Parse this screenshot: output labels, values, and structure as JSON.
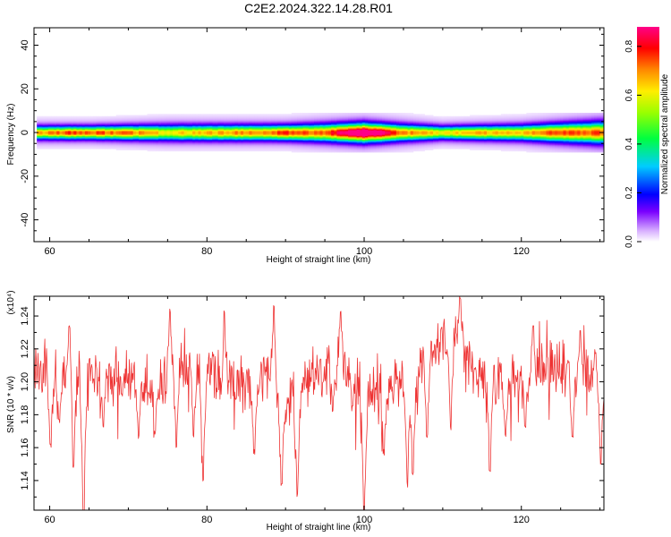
{
  "title": "C2E2.2024.322.14.28.R01",
  "chart_data": [
    {
      "type": "heatmap",
      "xlabel": "Height of straight line (km)",
      "ylabel": "Frequency (Hz)",
      "xlim": [
        58,
        130.5
      ],
      "ylim": [
        -50,
        48
      ],
      "xticks": [
        60,
        80,
        100,
        120
      ],
      "xtick_labels": [
        "60",
        "80",
        "100",
        "120"
      ],
      "yticks": [
        -40,
        -20,
        0,
        20,
        40
      ],
      "ytick_labels": [
        "-40",
        "-20",
        "0",
        "20",
        "40"
      ],
      "band": {
        "center_hz": 0,
        "halfwidth_hz": [
          [
            58.3,
            3
          ],
          [
            65,
            3
          ],
          [
            75,
            3.5
          ],
          [
            85,
            3.5
          ],
          [
            90,
            3.5
          ],
          [
            100,
            4.5
          ],
          [
            110,
            3
          ],
          [
            120,
            3.5
          ],
          [
            130.5,
            5
          ]
        ],
        "peak_amplitude": [
          [
            58.3,
            0.55
          ],
          [
            63,
            0.65
          ],
          [
            70,
            0.6
          ],
          [
            75,
            0.5
          ],
          [
            80,
            0.55
          ],
          [
            87,
            0.6
          ],
          [
            90,
            0.65
          ],
          [
            95,
            0.62
          ],
          [
            98,
            0.8
          ],
          [
            100,
            0.9
          ],
          [
            102,
            0.78
          ],
          [
            105,
            0.6
          ],
          [
            110,
            0.5
          ],
          [
            115,
            0.55
          ],
          [
            120,
            0.55
          ],
          [
            126,
            0.65
          ],
          [
            130.5,
            0.62
          ]
        ]
      },
      "colorbar": {
        "label": "Normalized spectral amplitude",
        "range": [
          0,
          0.88
        ],
        "ticks": [
          0.0,
          0.2,
          0.4,
          0.6,
          0.8
        ],
        "tick_labels": [
          "0.0",
          "0.2",
          "0.4",
          "0.6",
          "0.8"
        ],
        "colormap": "rainbow (white - violet - blue - cyan - green - yellow - orange - red - magenta)"
      },
      "grid": false
    },
    {
      "type": "line",
      "xlabel": "Height of straight line (km)",
      "ylabel": "SNR (10 * v/v)",
      "yscale_label": "(x10⁴)",
      "xlim": [
        58,
        130.5
      ],
      "ylim": [
        1.122,
        1.252
      ],
      "xticks": [
        60,
        80,
        100,
        120
      ],
      "xtick_labels": [
        "60",
        "80",
        "100",
        "120"
      ],
      "yticks": [
        1.14,
        1.16,
        1.18,
        1.2,
        1.22,
        1.24
      ],
      "ytick_labels": [
        "1.14",
        "1.16",
        "1.18",
        "1.20",
        "1.22",
        "1.24"
      ],
      "series": [
        {
          "color": "#ee3333",
          "x_range": [
            58,
            130.5
          ],
          "sample_count": 1000,
          "baseline": [
            [
              58,
              1.205
            ],
            [
              65,
              1.205
            ],
            [
              70,
              1.203
            ],
            [
              74,
              1.2
            ],
            [
              77,
              1.212
            ],
            [
              81,
              1.208
            ],
            [
              85,
              1.196
            ],
            [
              88,
              1.2
            ],
            [
              90,
              1.185
            ],
            [
              94,
              1.205
            ],
            [
              97,
              1.21
            ],
            [
              100,
              1.198
            ],
            [
              102,
              1.19
            ],
            [
              106,
              1.205
            ],
            [
              110,
              1.222
            ],
            [
              112,
              1.232
            ],
            [
              114,
              1.205
            ],
            [
              118,
              1.2
            ],
            [
              124,
              1.21
            ],
            [
              130.5,
              1.205
            ]
          ],
          "dips": [
            [
              60.1,
              1.16
            ],
            [
              61.2,
              1.174
            ],
            [
              63.0,
              1.147
            ],
            [
              64.3,
              1.116
            ],
            [
              66.8,
              1.17
            ],
            [
              69.2,
              1.19
            ],
            [
              71.3,
              1.165
            ],
            [
              73.4,
              1.168
            ],
            [
              76.1,
              1.16
            ],
            [
              78.3,
              1.165
            ],
            [
              79.5,
              1.137
            ],
            [
              82.0,
              1.173
            ],
            [
              86.0,
              1.155
            ],
            [
              89.5,
              1.135
            ],
            [
              91.5,
              1.13
            ],
            [
              96.0,
              1.18
            ],
            [
              98.5,
              1.182
            ],
            [
              100.0,
              1.114
            ],
            [
              102.5,
              1.155
            ],
            [
              105.5,
              1.135
            ],
            [
              106.2,
              1.143
            ],
            [
              108.0,
              1.165
            ],
            [
              111.0,
              1.17
            ],
            [
              116.0,
              1.145
            ],
            [
              118.0,
              1.165
            ],
            [
              120.5,
              1.172
            ],
            [
              126.5,
              1.163
            ],
            [
              130.1,
              1.147
            ]
          ],
          "spikes": [
            [
              62.5,
              1.235
            ],
            [
              75.3,
              1.245
            ],
            [
              82.2,
              1.245
            ],
            [
              88.5,
              1.247
            ],
            [
              97.0,
              1.245
            ],
            [
              112.2,
              1.252
            ],
            [
              121.5,
              1.235
            ],
            [
              127.5,
              1.232
            ]
          ]
        }
      ],
      "grid": false
    }
  ]
}
